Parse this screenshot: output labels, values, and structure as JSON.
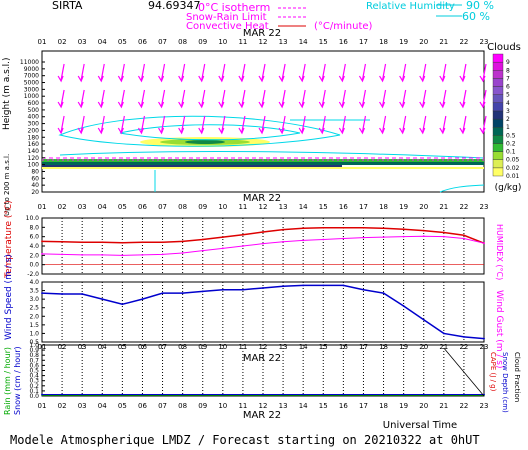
{
  "header": {
    "station": "SIRTA",
    "coords": "94.69347",
    "legend_isotherm": "0°C isotherm",
    "legend_snow": "Snow-Rain Limit",
    "legend_convective": "Convective Heat",
    "legend_convective_unit": "(°C/minute)",
    "legend_rh": "Relative Humidity",
    "rh_90": "90 %",
    "rh_60": "60 %"
  },
  "date_label": "MAR 22",
  "hours": [
    "01",
    "02",
    "03",
    "04",
    "05",
    "06",
    "07",
    "08",
    "09",
    "10",
    "11",
    "12",
    "13",
    "14",
    "15",
    "16",
    "17",
    "18",
    "19",
    "20",
    "21",
    "22",
    "23"
  ],
  "footer": {
    "universal_time": "Universal Time",
    "caption": "Modele Atmospherique LMDZ / Forecast starting on 20210322 at 0hUT"
  },
  "colors": {
    "magenta": "#ff00ff",
    "red": "#dd0000",
    "blue": "#0000cc",
    "cyan": "#00d8e8",
    "green": "#00aa00"
  },
  "chart_data": [
    {
      "type": "heatmap",
      "panel": "clouds",
      "ylabel": "Height (m a.s.l.)",
      "ylabel2": "Up to 200 m a.s.l.",
      "y_ticks": [
        "11000",
        "9000",
        "7000",
        "5000",
        "3000",
        "1000",
        "600",
        "500",
        "400",
        "300",
        "200",
        "180",
        "160",
        "140",
        "120",
        "100",
        "80",
        "60",
        "40",
        "20"
      ],
      "colorbar_title": "Clouds",
      "colorbar_unit": "(g/kg)",
      "colorbar_ticks": [
        "0.01",
        "0.02",
        "0.05",
        "0.1",
        "0.2",
        "0.5",
        "1",
        "2",
        "3",
        "4",
        "5",
        "6",
        "7",
        "8",
        "9"
      ],
      "colorbar_colors": [
        "#ffff66",
        "#ddee55",
        "#99dd33",
        "#33bb33",
        "#118844",
        "#006655",
        "#004466",
        "#223377",
        "#4444aa",
        "#6655bb",
        "#8855cc",
        "#9944cc",
        "#bb33cc",
        "#dd11dd",
        "#ff00ff"
      ]
    },
    {
      "type": "line",
      "panel": "temperature",
      "ylabel": "Temperature (°C)",
      "ylabel2": "HUMIDEX (°C)",
      "y_ticks": [
        "10.0",
        "8.0",
        "6.0",
        "4.0",
        "2.0",
        "0.0",
        "-2.0"
      ],
      "ylim": [
        -2,
        10
      ],
      "series": [
        {
          "values": [
            5.0,
            4.9,
            4.8,
            4.8,
            4.7,
            4.8,
            4.8,
            5.0,
            5.4,
            5.9,
            6.4,
            7.0,
            7.5,
            7.8,
            7.9,
            7.9,
            7.9,
            7.8,
            7.6,
            7.3,
            6.9,
            6.3,
            4.6
          ]
        },
        {
          "values": [
            2.3,
            2.2,
            2.1,
            2.1,
            2.0,
            2.1,
            2.2,
            2.5,
            3.0,
            3.5,
            4.0,
            4.5,
            4.9,
            5.2,
            5.4,
            5.6,
            5.8,
            5.9,
            6.0,
            6.1,
            6.0,
            5.6,
            4.6
          ]
        }
      ]
    },
    {
      "type": "line",
      "panel": "wind",
      "ylabel": "Wind Speed (m / s)",
      "ylabel2": "Wind Gust (m / s)",
      "y_ticks": [
        "4.0",
        "3.5",
        "3.0",
        "2.5",
        "2.0",
        "1.5",
        "1.0",
        "0.5"
      ],
      "ylim": [
        0.5,
        4.0
      ],
      "series": [
        {
          "values": [
            3.35,
            3.3,
            3.3,
            3.0,
            2.7,
            3.0,
            3.35,
            3.35,
            3.45,
            3.55,
            3.55,
            3.65,
            3.75,
            3.8,
            3.8,
            3.8,
            3.55,
            3.35,
            2.6,
            1.8,
            1.0,
            0.8,
            0.7
          ]
        }
      ]
    },
    {
      "type": "line",
      "panel": "precipitation",
      "ylabel": "Rain (mm / hour)",
      "ylabel_snow": "Snow (cm / hour)",
      "ylabel2": "CAPE (J / g)",
      "ylabel3": "Snow Depth (cm)",
      "ylabel4": "Cloud Fraction",
      "y_ticks": [
        "1.0",
        "0.9",
        "0.8",
        "0.7",
        "0.6",
        "0.5",
        "0.4",
        "0.3",
        "0.2",
        "0.1",
        "0.0"
      ],
      "ylim": [
        0,
        1
      ],
      "series": [
        {
          "values": [
            0.02,
            0.02,
            0.02,
            0.02,
            0.02,
            0.02,
            0.02,
            0.02,
            0.02,
            0.02,
            0.02,
            0.02,
            0.02,
            0.02,
            0.02,
            0.02,
            0.02,
            0.02,
            0.02,
            0.02,
            0.02,
            0.02,
            0.02
          ]
        },
        {
          "values": [
            0.03,
            0.03,
            0.03,
            0.03,
            0.03,
            0.03,
            0.03,
            0.03,
            0.03,
            0.03,
            0.03,
            0.03,
            0.03,
            0.03,
            0.03,
            0.03,
            0.03,
            0.03,
            0.03,
            0.03,
            0.03,
            0.03,
            0.03
          ]
        }
      ]
    }
  ]
}
